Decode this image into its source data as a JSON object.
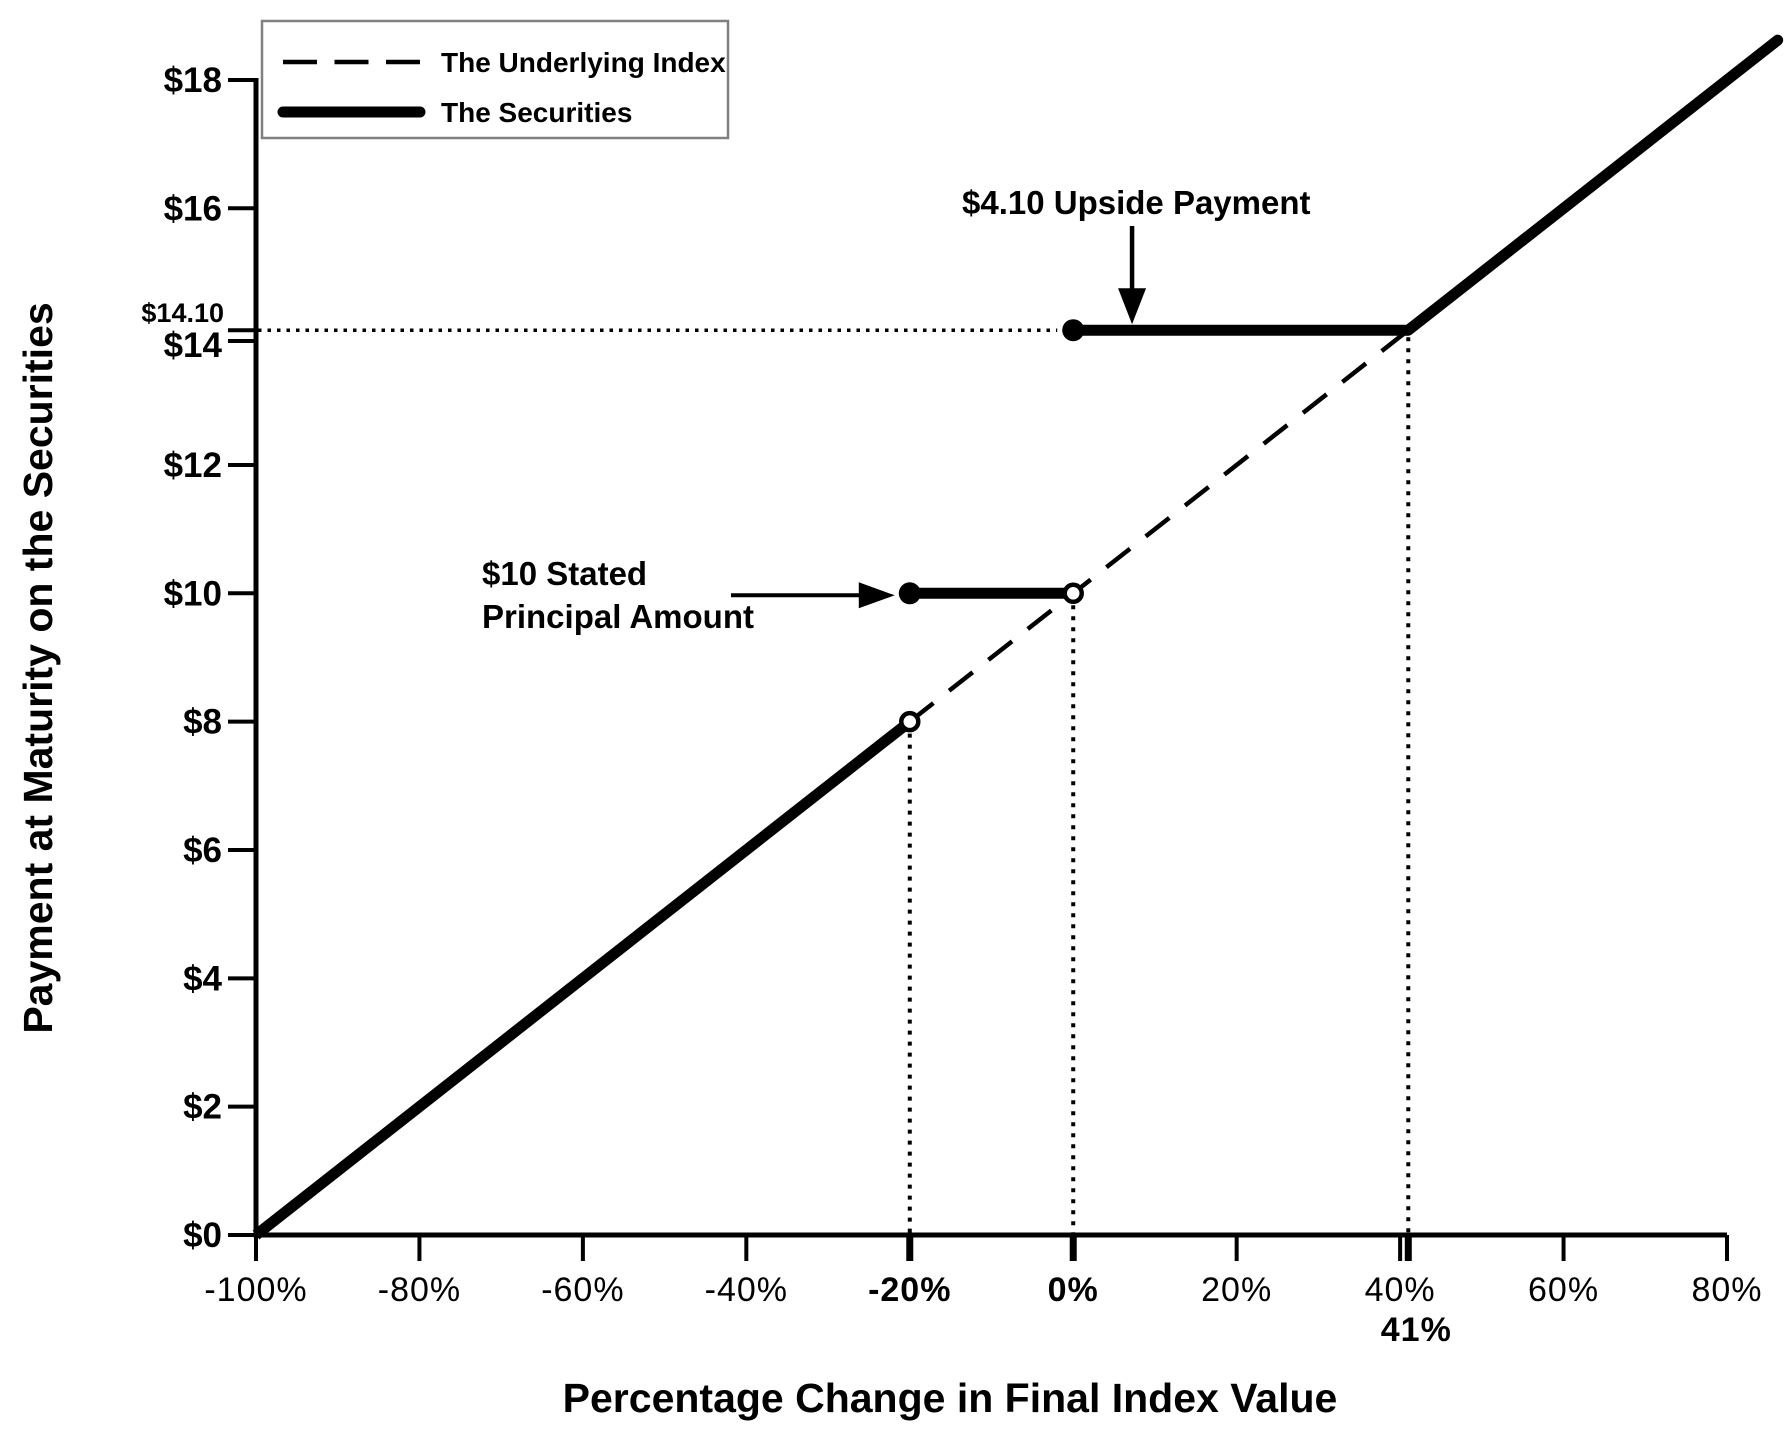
{
  "figure": {
    "background": "#ffffff",
    "ink_color": "#000000",
    "legend_border_color": "#808080"
  },
  "chart_data": {
    "type": "line",
    "title": "",
    "xlabel": "Percentage Change in Final Index Value",
    "ylabel": "Payment at Maturity on the Securities",
    "grid": false,
    "x_axis": {
      "range": [
        -100,
        80
      ],
      "unit": "percent",
      "ticks": [
        {
          "value": -100,
          "label": "-100%",
          "bold": false,
          "row": 1
        },
        {
          "value": -80,
          "label": "-80%",
          "bold": false,
          "row": 1
        },
        {
          "value": -60,
          "label": "-60%",
          "bold": false,
          "row": 1
        },
        {
          "value": -40,
          "label": "-40%",
          "bold": false,
          "row": 1
        },
        {
          "value": -20,
          "label": "-20%",
          "bold": true,
          "row": 1
        },
        {
          "value": 0,
          "label": "0%",
          "bold": true,
          "row": 1
        },
        {
          "value": 20,
          "label": "20%",
          "bold": false,
          "row": 1
        },
        {
          "value": 40,
          "label": "40%",
          "bold": false,
          "row": 1
        },
        {
          "value": 41,
          "label": "41%",
          "bold": true,
          "row": 2
        },
        {
          "value": 60,
          "label": "60%",
          "bold": false,
          "row": 1
        },
        {
          "value": 80,
          "label": "80%",
          "bold": false,
          "row": 1
        }
      ]
    },
    "y_axis": {
      "range": [
        0,
        18
      ],
      "unit": "USD",
      "ticks": [
        {
          "value": 0,
          "label": "$0",
          "small": false
        },
        {
          "value": 2,
          "label": "$2",
          "small": false
        },
        {
          "value": 4,
          "label": "$4",
          "small": false
        },
        {
          "value": 6,
          "label": "$6",
          "small": false
        },
        {
          "value": 8,
          "label": "$8",
          "small": false
        },
        {
          "value": 10,
          "label": "$10",
          "small": false
        },
        {
          "value": 12,
          "label": "$12",
          "small": false
        },
        {
          "value": 14,
          "label": "$14",
          "small": false
        },
        {
          "value": 14.1,
          "label": "$14.10",
          "small": true
        },
        {
          "value": 16,
          "label": "$16",
          "small": false
        },
        {
          "value": 18,
          "label": "$18",
          "small": false
        }
      ]
    },
    "series": [
      {
        "name": "The Underlying Index",
        "style": "dashed",
        "points": [
          [
            -20,
            8
          ],
          [
            41,
            14.1
          ]
        ]
      },
      {
        "name": "The Securities",
        "style": "solid-thick",
        "segments": [
          {
            "points": [
              [
                -100,
                0
              ],
              [
                -20,
                8
              ]
            ]
          },
          {
            "points": [
              [
                -20,
                10
              ],
              [
                0,
                10
              ]
            ]
          },
          {
            "points": [
              [
                0,
                14.1
              ],
              [
                41,
                14.1
              ]
            ]
          },
          {
            "points": [
              [
                41,
                14.1
              ],
              [
                86.2,
                18.62
              ]
            ]
          }
        ],
        "markers": [
          {
            "x": -20,
            "y": 8,
            "style": "open"
          },
          {
            "x": -20,
            "y": 10,
            "style": "filled"
          },
          {
            "x": 0,
            "y": 10,
            "style": "open"
          },
          {
            "x": 0,
            "y": 14.1,
            "style": "filled"
          }
        ]
      }
    ],
    "reference_lines": {
      "horizontal_dotted": [
        {
          "y": 14.1,
          "x_from_axis": true,
          "x_to": 0
        }
      ],
      "vertical_dotted": [
        {
          "x": -20,
          "y_from": 8,
          "starts_at_marker": true
        },
        {
          "x": 0,
          "y_from": 10,
          "starts_at_marker": true
        },
        {
          "x": 41,
          "y_from": 14.1,
          "starts_at_marker": false
        }
      ]
    },
    "annotations": [
      {
        "id": "upside",
        "lines": [
          "$4.10 Upside Payment"
        ],
        "arrow": "down",
        "target": {
          "x_pct": 7.2,
          "y_usd": 14.1
        }
      },
      {
        "id": "principal",
        "lines": [
          "$10 Stated",
          "Principal Amount"
        ],
        "arrow": "right",
        "target": {
          "x_pct": -20,
          "y_usd": 10
        }
      }
    ],
    "legend": {
      "position": "top-left",
      "items": [
        {
          "label": "The Underlying Index",
          "style": "dashed"
        },
        {
          "label": "The Securities",
          "style": "solid-thick"
        }
      ]
    }
  }
}
